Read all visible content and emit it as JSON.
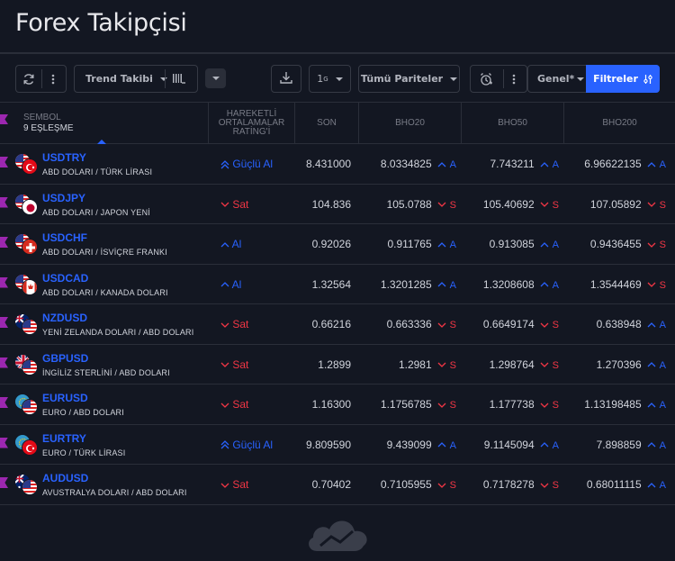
{
  "app": {
    "title": "Forex Takipçisi"
  },
  "toolbar": {
    "trend_label": "Trend Takibi",
    "interval_label": "1",
    "interval_sup": "G",
    "pairs_label": "Tümü Pariteler",
    "view_label": "Genel*",
    "filters_label": "Filtreler"
  },
  "columns": {
    "symbol_title": "SEMBOL",
    "symbol_count": "9 EŞLEŞME",
    "rating_l1": "HAREKETLİ",
    "rating_l2": "ORTALAMALAR",
    "rating_l3": "RATİNG'İ",
    "son": "SON",
    "bho20": "BHO20",
    "bho50": "BHO50",
    "bho200": "BHO200"
  },
  "rows": [
    {
      "code": "USDTRY",
      "desc": "ABD DOLARI / TÜRK LİRASI",
      "flag1": "us",
      "flag2": "tr",
      "rating": "Güçlü Al",
      "rating_dir": "strong-up",
      "son": "8.431000",
      "bho20": "8.0334825",
      "bho20_sig": "A",
      "bho20_dir": "up",
      "bho50": "7.743211",
      "bho50_sig": "A",
      "bho50_dir": "up",
      "bho200": "6.96622135",
      "bho200_sig": "A",
      "bho200_dir": "up"
    },
    {
      "code": "USDJPY",
      "desc": "ABD DOLARI / JAPON YENİ",
      "flag1": "us",
      "flag2": "jp",
      "rating": "Sat",
      "rating_dir": "down",
      "son": "104.836",
      "bho20": "105.0788",
      "bho20_sig": "S",
      "bho20_dir": "down",
      "bho50": "105.40692",
      "bho50_sig": "S",
      "bho50_dir": "down",
      "bho200": "107.05892",
      "bho200_sig": "S",
      "bho200_dir": "down"
    },
    {
      "code": "USDCHF",
      "desc": "ABD DOLARI / İSVİÇRE FRANKI",
      "flag1": "us",
      "flag2": "ch",
      "rating": "Al",
      "rating_dir": "up",
      "son": "0.92026",
      "bho20": "0.911765",
      "bho20_sig": "A",
      "bho20_dir": "up",
      "bho50": "0.913085",
      "bho50_sig": "A",
      "bho50_dir": "up",
      "bho200": "0.9436455",
      "bho200_sig": "S",
      "bho200_dir": "down"
    },
    {
      "code": "USDCAD",
      "desc": "ABD DOLARI / KANADA DOLARI",
      "flag1": "us",
      "flag2": "ca",
      "rating": "Al",
      "rating_dir": "up",
      "son": "1.32564",
      "bho20": "1.3201285",
      "bho20_sig": "A",
      "bho20_dir": "up",
      "bho50": "1.3208608",
      "bho50_sig": "A",
      "bho50_dir": "up",
      "bho200": "1.3544469",
      "bho200_sig": "S",
      "bho200_dir": "down"
    },
    {
      "code": "NZDUSD",
      "desc": "YENİ ZELANDA DOLARI / ABD DOLARI",
      "flag1": "nz",
      "flag2": "us",
      "rating": "Sat",
      "rating_dir": "down",
      "son": "0.66216",
      "bho20": "0.663336",
      "bho20_sig": "S",
      "bho20_dir": "down",
      "bho50": "0.6649174",
      "bho50_sig": "S",
      "bho50_dir": "down",
      "bho200": "0.638948",
      "bho200_sig": "A",
      "bho200_dir": "up"
    },
    {
      "code": "GBPUSD",
      "desc": "İNGİLİZ STERLİNİ / ABD DOLARI",
      "flag1": "gb",
      "flag2": "us",
      "rating": "Sat",
      "rating_dir": "down",
      "son": "1.2899",
      "bho20": "1.2981",
      "bho20_sig": "S",
      "bho20_dir": "down",
      "bho50": "1.298764",
      "bho50_sig": "S",
      "bho50_dir": "down",
      "bho200": "1.270396",
      "bho200_sig": "A",
      "bho200_dir": "up"
    },
    {
      "code": "EURUSD",
      "desc": "EURO / ABD DOLARI",
      "flag1": "eu",
      "flag2": "us",
      "rating": "Sat",
      "rating_dir": "down",
      "son": "1.16300",
      "bho20": "1.1756785",
      "bho20_sig": "S",
      "bho20_dir": "down",
      "bho50": "1.177738",
      "bho50_sig": "S",
      "bho50_dir": "down",
      "bho200": "1.13198485",
      "bho200_sig": "A",
      "bho200_dir": "up"
    },
    {
      "code": "EURTRY",
      "desc": "EURO / TÜRK LİRASI",
      "flag1": "eu",
      "flag2": "tr",
      "rating": "Güçlü Al",
      "rating_dir": "strong-up",
      "son": "9.809590",
      "bho20": "9.439099",
      "bho20_sig": "A",
      "bho20_dir": "up",
      "bho50": "9.1145094",
      "bho50_sig": "A",
      "bho50_dir": "up",
      "bho200": "7.898859",
      "bho200_sig": "A",
      "bho200_dir": "up"
    },
    {
      "code": "AUDUSD",
      "desc": "AVUSTRALYA DOLARI / ABD DOLARI",
      "flag1": "au",
      "flag2": "us",
      "rating": "Sat",
      "rating_dir": "down",
      "son": "0.70402",
      "bho20": "0.7105955",
      "bho20_sig": "S",
      "bho20_dir": "down",
      "bho50": "0.7178278",
      "bho50_sig": "S",
      "bho50_dir": "down",
      "bho200": "0.68011115",
      "bho200_sig": "A",
      "bho200_dir": "up"
    }
  ],
  "colors": {
    "accent": "#2962ff",
    "down": "#f23645",
    "background": "#131722",
    "marker": "#9c27b0"
  },
  "icons": [
    "refresh-icon",
    "more-icon",
    "bars-icon",
    "download-icon",
    "alarm-icon",
    "filter-sliders-icon",
    "chevron-down-icon",
    "cloud-logo-icon"
  ]
}
